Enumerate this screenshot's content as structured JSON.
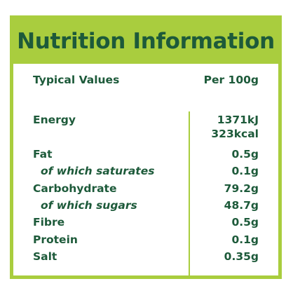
{
  "title": "Nutrition Information",
  "header": {
    "label": "Typical Values",
    "per": "Per 100g"
  },
  "energy": {
    "label": "Energy",
    "kj": "1371kJ",
    "kcal": "323kcal"
  },
  "rows": [
    {
      "label": "Fat",
      "value": "0.5g"
    },
    {
      "label": "of which saturates",
      "value": "0.1g"
    },
    {
      "label": "Carbohydrate",
      "value": "79.2g"
    },
    {
      "label": "of which sugars",
      "value": "48.7g"
    },
    {
      "label": "Fibre",
      "value": "0.5g"
    },
    {
      "label": "Protein",
      "value": "0.1g"
    },
    {
      "label": "Salt",
      "value": "0.35g"
    }
  ],
  "colors": {
    "green": "#a9cd3e",
    "text": "#1d5a3a"
  }
}
